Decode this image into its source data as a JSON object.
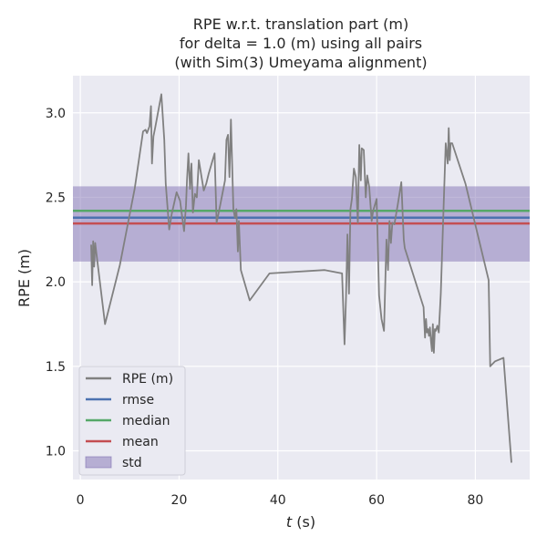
{
  "chart_data": {
    "type": "line",
    "title_lines": [
      "RPE w.r.t. translation part (m)",
      "for delta = 1.0 (m) using all pairs",
      "(with Sim(3) Umeyama alignment)"
    ],
    "xlabel_italic": "t",
    "xlabel_rest": " (s)",
    "ylabel": "RPE (m)",
    "xlim": [
      -1.5,
      91
    ],
    "ylim": [
      0.83,
      3.22
    ],
    "xticks": [
      0,
      20,
      40,
      60,
      80
    ],
    "yticks": [
      1.0,
      1.5,
      2.0,
      2.5,
      3.0
    ],
    "xtick_labels": [
      "0",
      "20",
      "40",
      "60",
      "80"
    ],
    "ytick_labels": [
      "1.0",
      "1.5",
      "2.0",
      "2.5",
      "3.0"
    ],
    "grid": true,
    "legend_position": "lower-left",
    "legend": [
      {
        "label": "RPE (m)",
        "color": "#808080",
        "kind": "line"
      },
      {
        "label": "rmse",
        "color": "#4c72b0",
        "kind": "line"
      },
      {
        "label": "median",
        "color": "#55a868",
        "kind": "line"
      },
      {
        "label": "mean",
        "color": "#c44e52",
        "kind": "line"
      },
      {
        "label": "std",
        "color": "#8172b3",
        "kind": "patch"
      }
    ],
    "colors": {
      "series": "#808080",
      "rmse": "#4c72b0",
      "median": "#55a868",
      "mean": "#c44e52",
      "std": "#8172b3",
      "plot_background": "#eaeaf2",
      "grid": "#ffffff"
    },
    "stats": {
      "rmse": 2.38,
      "median": 2.42,
      "mean": 2.345,
      "std_low": 2.12,
      "std_high": 2.565
    },
    "series": [
      {
        "name": "RPE (m)",
        "x": [
          2.2,
          2.4,
          2.6,
          2.8,
          3.0,
          3.2,
          5.0,
          8.0,
          11.0,
          12.7,
          13.2,
          13.5,
          14.0,
          14.3,
          14.5,
          14.8,
          15.2,
          16.4,
          17.0,
          17.3,
          18.0,
          18.5,
          19.5,
          20.2,
          21.0,
          21.4,
          21.6,
          21.9,
          22.2,
          22.5,
          22.8,
          23.2,
          23.6,
          24.0,
          25.0,
          25.5,
          26.0,
          27.2,
          27.6,
          28.3,
          29.3,
          29.6,
          29.9,
          30.2,
          30.5,
          31.0,
          31.3,
          31.6,
          31.9,
          32.1,
          32.5,
          34.3,
          38.3,
          49.5,
          53.0,
          53.5,
          53.8,
          54.1,
          54.4,
          54.7,
          55.0,
          55.4,
          55.8,
          56.2,
          56.5,
          56.8,
          57.0,
          57.4,
          57.8,
          58.1,
          58.5,
          59.0,
          59.3,
          59.6,
          60.0,
          60.5,
          61.0,
          61.5,
          62.0,
          62.3,
          62.6,
          62.9,
          63.2,
          63.6,
          64.3,
          65.0,
          65.5,
          65.7,
          69.5,
          69.8,
          70.0,
          70.2,
          70.4,
          70.6,
          70.8,
          71.0,
          71.2,
          71.4,
          71.6,
          71.8,
          72.0,
          72.3,
          72.6,
          73.0,
          73.5,
          74.0,
          74.4,
          74.6,
          74.8,
          75.0,
          75.3,
          78.0,
          82.7,
          83.0,
          84.0,
          85.7,
          87.3
        ],
        "y": [
          2.22,
          1.98,
          2.24,
          2.09,
          2.23,
          2.18,
          1.75,
          2.1,
          2.55,
          2.89,
          2.9,
          2.88,
          2.92,
          3.04,
          2.7,
          2.86,
          2.92,
          3.11,
          2.84,
          2.58,
          2.31,
          2.4,
          2.53,
          2.48,
          2.3,
          2.45,
          2.6,
          2.76,
          2.55,
          2.7,
          2.41,
          2.52,
          2.5,
          2.72,
          2.54,
          2.58,
          2.64,
          2.76,
          2.35,
          2.45,
          2.6,
          2.84,
          2.87,
          2.62,
          2.96,
          2.43,
          2.38,
          2.43,
          2.18,
          2.36,
          2.07,
          1.89,
          2.05,
          2.07,
          2.05,
          1.63,
          1.9,
          2.28,
          1.93,
          2.43,
          2.49,
          2.67,
          2.62,
          2.35,
          2.81,
          2.6,
          2.79,
          2.78,
          2.5,
          2.63,
          2.56,
          2.36,
          2.42,
          2.45,
          2.49,
          1.92,
          1.78,
          1.71,
          2.25,
          2.07,
          2.36,
          2.23,
          2.35,
          2.34,
          2.46,
          2.59,
          2.25,
          2.2,
          1.85,
          1.67,
          1.78,
          1.7,
          1.72,
          1.68,
          1.73,
          1.65,
          1.59,
          1.75,
          1.58,
          1.72,
          1.71,
          1.74,
          1.7,
          1.93,
          2.38,
          2.82,
          2.7,
          2.91,
          2.72,
          2.82,
          2.82,
          2.58,
          2.01,
          1.5,
          1.53,
          1.55,
          0.93
        ]
      }
    ]
  }
}
